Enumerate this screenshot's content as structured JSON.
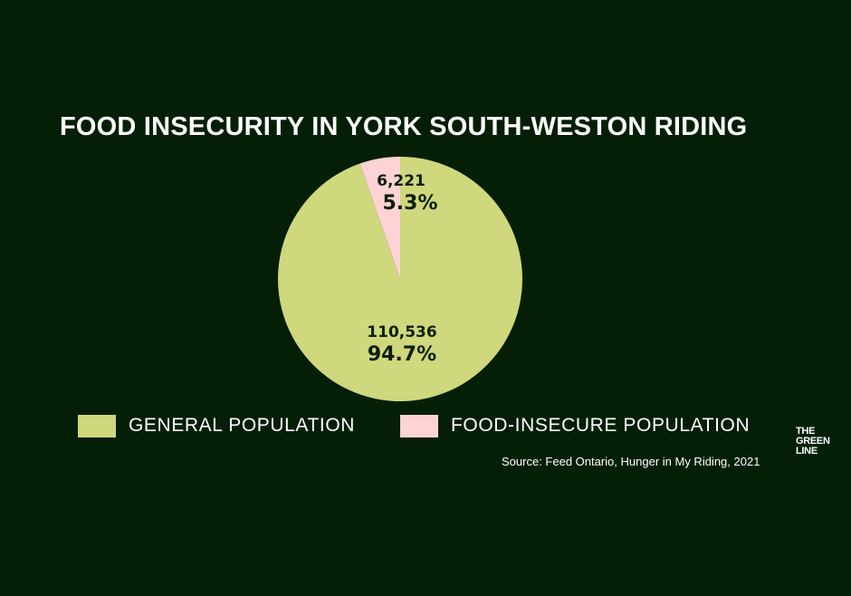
{
  "chart_data": {
    "type": "pie",
    "title": "FOOD INSECURITY IN YORK SOUTH-WESTON RIDING",
    "slices": [
      {
        "name": "GENERAL POPULATION",
        "value": 110536,
        "percent_label": "94.7%",
        "value_label": "110,536",
        "color": "#cfd87c"
      },
      {
        "name": "FOOD-INSECURE POPULATION",
        "value": 6221,
        "percent_label": "5.3%",
        "value_label": "6,221",
        "color": "#fdd3d5"
      }
    ],
    "legend_position": "bottom",
    "source": "Source: Feed Ontario, Hunger in My Riding, 2021"
  },
  "logo": {
    "lines": [
      "THE",
      "GREEN",
      "LINE"
    ]
  },
  "colors": {
    "background": "#041f06",
    "text": "#ffffff"
  }
}
